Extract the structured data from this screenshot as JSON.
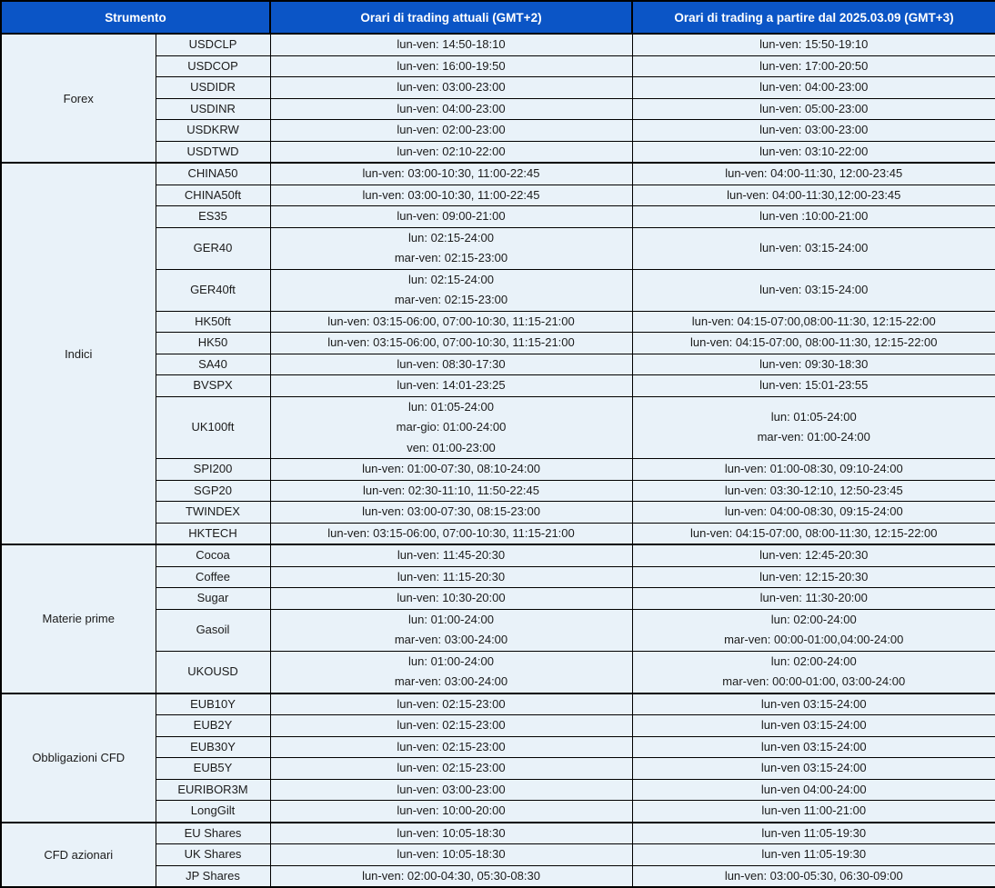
{
  "colors": {
    "header_bg": "#0B55C6",
    "header_text": "#FFFFFF",
    "row_bg": "#E9F2F9",
    "body_text": "#1B1B1B",
    "border": "#000000"
  },
  "header": {
    "col_instrument": "Strumento",
    "col_current": "Orari di trading attuali (GMT+2)",
    "col_new": "Orari di trading a partire dal 2025.03.09 (GMT+3)"
  },
  "groups": [
    {
      "name": "Forex",
      "rows": [
        {
          "instrument": "USDCLP",
          "current": [
            "lun-ven: 14:50-18:10"
          ],
          "new": [
            "lun-ven: 15:50-19:10"
          ]
        },
        {
          "instrument": "USDCOP",
          "current": [
            "lun-ven: 16:00-19:50"
          ],
          "new": [
            "lun-ven: 17:00-20:50"
          ]
        },
        {
          "instrument": "USDIDR",
          "current": [
            "lun-ven: 03:00-23:00"
          ],
          "new": [
            "lun-ven: 04:00-23:00"
          ]
        },
        {
          "instrument": "USDINR",
          "current": [
            "lun-ven: 04:00-23:00"
          ],
          "new": [
            "lun-ven: 05:00-23:00"
          ]
        },
        {
          "instrument": "USDKRW",
          "current": [
            "lun-ven: 02:00-23:00"
          ],
          "new": [
            "lun-ven: 03:00-23:00"
          ]
        },
        {
          "instrument": "USDTWD",
          "current": [
            "lun-ven: 02:10-22:00"
          ],
          "new": [
            "lun-ven: 03:10-22:00"
          ]
        }
      ]
    },
    {
      "name": "Indici",
      "rows": [
        {
          "instrument": "CHINA50",
          "current": [
            "lun-ven: 03:00-10:30, 11:00-22:45"
          ],
          "new": [
            "lun-ven: 04:00-11:30, 12:00-23:45"
          ]
        },
        {
          "instrument": "CHINA50ft",
          "current": [
            "lun-ven: 03:00-10:30, 11:00-22:45"
          ],
          "new": [
            "lun-ven: 04:00-11:30,12:00-23:45"
          ]
        },
        {
          "instrument": "ES35",
          "current": [
            "lun-ven: 09:00-21:00"
          ],
          "new": [
            "lun-ven :10:00-21:00"
          ]
        },
        {
          "instrument": "GER40",
          "current": [
            "lun: 02:15-24:00",
            "mar-ven: 02:15-23:00"
          ],
          "new": [
            "lun-ven: 03:15-24:00"
          ]
        },
        {
          "instrument": "GER40ft",
          "current": [
            "lun: 02:15-24:00",
            "mar-ven: 02:15-23:00"
          ],
          "new": [
            "lun-ven: 03:15-24:00"
          ]
        },
        {
          "instrument": "HK50ft",
          "current": [
            "lun-ven: 03:15-06:00, 07:00-10:30, 11:15-21:00"
          ],
          "new": [
            "lun-ven: 04:15-07:00,08:00-11:30, 12:15-22:00"
          ]
        },
        {
          "instrument": "HK50",
          "current": [
            "lun-ven: 03:15-06:00, 07:00-10:30, 11:15-21:00"
          ],
          "new": [
            "lun-ven: 04:15-07:00, 08:00-11:30, 12:15-22:00"
          ]
        },
        {
          "instrument": "SA40",
          "current": [
            "lun-ven: 08:30-17:30"
          ],
          "new": [
            "lun-ven: 09:30-18:30"
          ]
        },
        {
          "instrument": "BVSPX",
          "current": [
            "lun-ven: 14:01-23:25"
          ],
          "new": [
            "lun-ven: 15:01-23:55"
          ]
        },
        {
          "instrument": "UK100ft",
          "current": [
            "lun: 01:05-24:00",
            "mar-gio: 01:00-24:00",
            "ven: 01:00-23:00"
          ],
          "new": [
            "lun: 01:05-24:00",
            "mar-ven: 01:00-24:00"
          ]
        },
        {
          "instrument": "SPI200",
          "current": [
            "lun-ven: 01:00-07:30, 08:10-24:00"
          ],
          "new": [
            "lun-ven: 01:00-08:30, 09:10-24:00"
          ]
        },
        {
          "instrument": "SGP20",
          "current": [
            "lun-ven: 02:30-11:10, 11:50-22:45"
          ],
          "new": [
            "lun-ven: 03:30-12:10, 12:50-23:45"
          ]
        },
        {
          "instrument": "TWINDEX",
          "current": [
            "lun-ven: 03:00-07:30, 08:15-23:00"
          ],
          "new": [
            "lun-ven: 04:00-08:30, 09:15-24:00"
          ]
        },
        {
          "instrument": "HKTECH",
          "current": [
            "lun-ven: 03:15-06:00, 07:00-10:30, 11:15-21:00"
          ],
          "new": [
            "lun-ven: 04:15-07:00, 08:00-11:30, 12:15-22:00"
          ]
        }
      ]
    },
    {
      "name": "Materie prime",
      "rows": [
        {
          "instrument": "Cocoa",
          "current": [
            "lun-ven: 11:45-20:30"
          ],
          "new": [
            "lun-ven: 12:45-20:30"
          ]
        },
        {
          "instrument": "Coffee",
          "current": [
            "lun-ven: 11:15-20:30"
          ],
          "new": [
            "lun-ven: 12:15-20:30"
          ]
        },
        {
          "instrument": "Sugar",
          "current": [
            "lun-ven: 10:30-20:00"
          ],
          "new": [
            "lun-ven: 11:30-20:00"
          ]
        },
        {
          "instrument": "Gasoil",
          "current": [
            "lun: 01:00-24:00",
            "mar-ven: 03:00-24:00"
          ],
          "new": [
            "lun: 02:00-24:00",
            "mar-ven: 00:00-01:00,04:00-24:00"
          ]
        },
        {
          "instrument": "UKOUSD",
          "current": [
            "lun: 01:00-24:00",
            "mar-ven: 03:00-24:00"
          ],
          "new": [
            "lun: 02:00-24:00",
            "mar-ven: 00:00-01:00, 03:00-24:00"
          ]
        }
      ]
    },
    {
      "name": "Obbligazioni CFD",
      "rows": [
        {
          "instrument": "EUB10Y",
          "current": [
            "lun-ven: 02:15-23:00"
          ],
          "new": [
            "lun-ven 03:15-24:00"
          ]
        },
        {
          "instrument": "EUB2Y",
          "current": [
            "lun-ven: 02:15-23:00"
          ],
          "new": [
            "lun-ven 03:15-24:00"
          ]
        },
        {
          "instrument": "EUB30Y",
          "current": [
            "lun-ven: 02:15-23:00"
          ],
          "new": [
            "lun-ven 03:15-24:00"
          ]
        },
        {
          "instrument": "EUB5Y",
          "current": [
            "lun-ven: 02:15-23:00"
          ],
          "new": [
            "lun-ven 03:15-24:00"
          ]
        },
        {
          "instrument": "EURIBOR3M",
          "current": [
            "lun-ven: 03:00-23:00"
          ],
          "new": [
            "lun-ven 04:00-24:00"
          ]
        },
        {
          "instrument": "LongGilt",
          "current": [
            "lun-ven: 10:00-20:00"
          ],
          "new": [
            "lun-ven 11:00-21:00"
          ]
        }
      ]
    },
    {
      "name": "CFD azionari",
      "rows": [
        {
          "instrument": "EU Shares",
          "current": [
            "lun-ven: 10:05-18:30"
          ],
          "new": [
            "lun-ven 11:05-19:30"
          ]
        },
        {
          "instrument": "UK Shares",
          "current": [
            "lun-ven: 10:05-18:30"
          ],
          "new": [
            "lun-ven 11:05-19:30"
          ]
        },
        {
          "instrument": "JP Shares",
          "current": [
            "lun-ven: 02:00-04:30, 05:30-08:30"
          ],
          "new": [
            "lun-ven: 03:00-05:30, 06:30-09:00"
          ]
        }
      ]
    }
  ]
}
